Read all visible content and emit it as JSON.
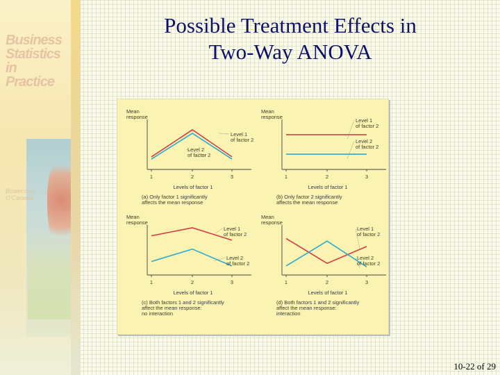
{
  "title": {
    "line1": "Possible Treatment Effects in",
    "line2": "Two-Way ANOVA"
  },
  "sidebar": {
    "book_title": [
      "Business",
      "Statistics",
      "in Practice"
    ],
    "authors": [
      "Bowerman",
      "O'Connell"
    ]
  },
  "figure": {
    "colors": {
      "background": "#fbf3b2",
      "red_line": "#d43d45",
      "blue_line": "#2ca9cf",
      "axis": "#444444",
      "text": "#3a3a3a"
    },
    "panels": [
      {
        "id": "a",
        "y_label": [
          "Mean",
          "response"
        ],
        "x_label": "Levels of factor 1",
        "ticks": [
          "1",
          "2",
          "3"
        ],
        "series": [
          {
            "name": [
              "Level 1",
              "of factor 2"
            ],
            "color": "#d43d45",
            "values": [
              1,
              2,
              3
            ],
            "y": [
              0.22,
              0.83,
              0.22
            ]
          },
          {
            "name": [
              "Level 2",
              "of factor 2"
            ],
            "color": "#2ca9cf",
            "values": [
              1,
              2,
              3
            ],
            "y": [
              0.17,
              0.75,
              0.17
            ]
          }
        ],
        "caption": [
          "(a) Only factor 1 significantly",
          "affects the mean response"
        ]
      },
      {
        "id": "b",
        "y_label": [
          "Mean",
          "response"
        ],
        "x_label": "Levels of factor 1",
        "ticks": [
          "1",
          "2",
          "3"
        ],
        "series": [
          {
            "name": [
              "Level 1",
              "of factor 2"
            ],
            "color": "#d43d45",
            "values": [
              1,
              2,
              3
            ],
            "y": [
              0.72,
              0.72,
              0.72
            ]
          },
          {
            "name": [
              "Level 2",
              "of factor 2"
            ],
            "color": "#2ca9cf",
            "values": [
              1,
              2,
              3
            ],
            "y": [
              0.28,
              0.28,
              0.28
            ]
          }
        ],
        "caption": [
          "(b) Only factor 2 significantly",
          "affects the mean response"
        ]
      },
      {
        "id": "c",
        "y_label": [
          "Mean",
          "response"
        ],
        "x_label": "Levels of factor 1",
        "ticks": [
          "1",
          "2",
          "3"
        ],
        "series": [
          {
            "name": [
              "Level 1",
              "of factor 2"
            ],
            "color": "#d43d45",
            "values": [
              1,
              2,
              3
            ],
            "y": [
              0.82,
              1.0,
              0.72
            ]
          },
          {
            "name": [
              "Level 2",
              "of factor 2"
            ],
            "color": "#2ca9cf",
            "values": [
              1,
              2,
              3
            ],
            "y": [
              0.24,
              0.52,
              0.14
            ]
          }
        ],
        "caption": [
          "(c) Both factors 1 and 2 significantly",
          "affect the mean response:",
          "no interaction"
        ]
      },
      {
        "id": "d",
        "y_label": [
          "Mean",
          "response"
        ],
        "x_label": "Levels of factor 1",
        "ticks": [
          "1",
          "2",
          "3"
        ],
        "series": [
          {
            "name": [
              "Level 1",
              "of factor 2"
            ],
            "color": "#d43d45",
            "values": [
              1,
              2,
              3
            ],
            "y": [
              0.76,
              0.2,
              0.58
            ]
          },
          {
            "name": [
              "Level 2",
              "of factor 2"
            ],
            "color": "#2ca9cf",
            "values": [
              1,
              2,
              3
            ],
            "y": [
              0.14,
              0.7,
              0.12
            ]
          }
        ],
        "caption": [
          "(d) Both factors 1 and 2 significantly",
          "affect the mean response:",
          "interaction"
        ]
      }
    ]
  },
  "page_number": "10-22 of 29"
}
